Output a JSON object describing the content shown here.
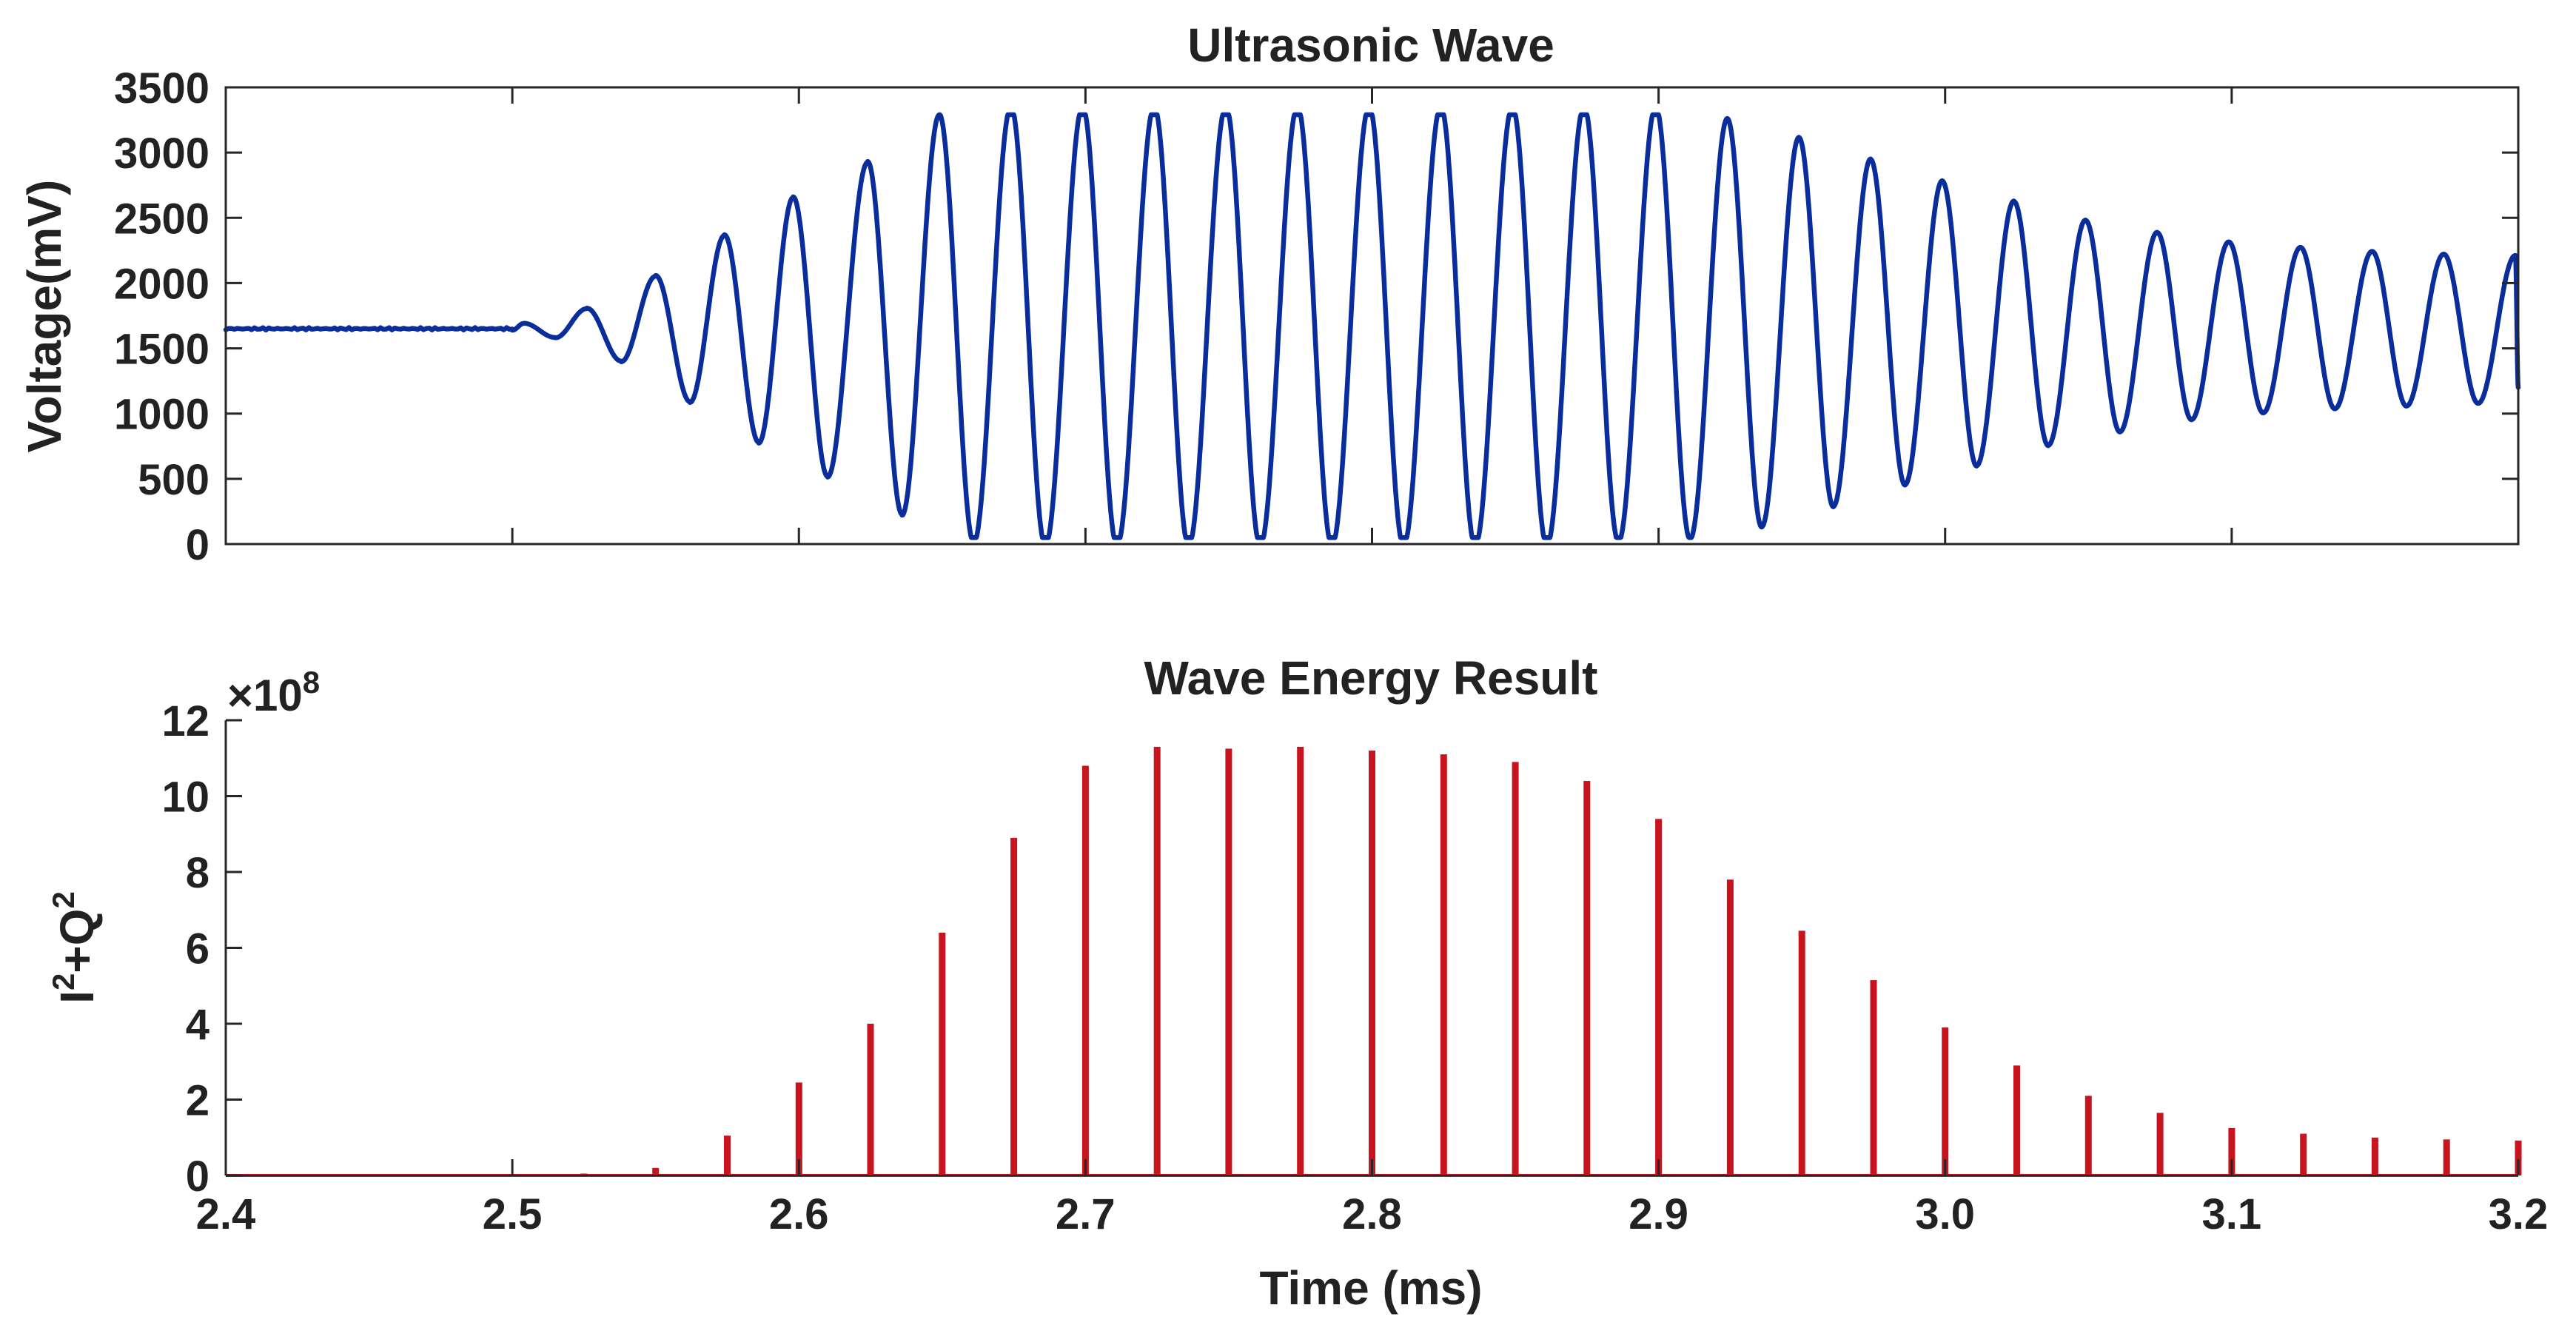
{
  "chart_data": [
    {
      "type": "line",
      "title": "Ultrasonic Wave",
      "xlabel": "",
      "ylabel": "Voltage(mV)",
      "xlim": [
        2.4,
        3.2
      ],
      "ylim": [
        0,
        3500
      ],
      "yticks": [
        0,
        500,
        1000,
        1500,
        2000,
        2500,
        3000,
        3500
      ],
      "yticklabels": [
        "0",
        "500",
        "1000",
        "1500",
        "2000",
        "2500",
        "3000",
        "3500"
      ],
      "xticks": [
        2.5,
        2.6,
        2.7,
        2.8,
        2.9,
        3.0,
        3.1,
        3.2
      ],
      "series": [
        {
          "name": "Ultrasonic Wave",
          "color": "#0a2d9c",
          "baseline_mV": 1650,
          "clip_max_mV": 3290,
          "clip_min_mV": 50,
          "extrema": [
            [
              2.4,
              1650
            ],
            [
              2.5,
              1640
            ],
            [
              2.504,
              1690
            ],
            [
              2.515,
              1585
            ],
            [
              2.526,
              1800
            ],
            [
              2.538,
              1410
            ],
            [
              2.55,
              2040
            ],
            [
              2.562,
              1110
            ],
            [
              2.574,
              2340
            ],
            [
              2.586,
              810
            ],
            [
              2.598,
              2620
            ],
            [
              2.61,
              560
            ],
            [
              2.624,
              2880
            ],
            [
              2.636,
              280
            ],
            [
              2.649,
              3230
            ],
            [
              2.661,
              70
            ],
            [
              2.674,
              3290
            ],
            [
              2.686,
              50
            ],
            [
              2.699,
              3290
            ],
            [
              2.711,
              50
            ],
            [
              2.724,
              3290
            ],
            [
              2.736,
              50
            ],
            [
              2.749,
              3290
            ],
            [
              2.761,
              50
            ],
            [
              2.774,
              3290
            ],
            [
              2.786,
              50
            ],
            [
              2.799,
              3290
            ],
            [
              2.811,
              50
            ],
            [
              2.824,
              3290
            ],
            [
              2.836,
              50
            ],
            [
              2.849,
              3290
            ],
            [
              2.861,
              50
            ],
            [
              2.874,
              3290
            ],
            [
              2.886,
              80
            ],
            [
              2.899,
              3290
            ],
            [
              2.911,
              100
            ],
            [
              2.924,
              3200
            ],
            [
              2.936,
              190
            ],
            [
              2.949,
              3060
            ],
            [
              2.961,
              340
            ],
            [
              2.974,
              2900
            ],
            [
              2.986,
              500
            ],
            [
              2.999,
              2740
            ],
            [
              3.011,
              640
            ],
            [
              3.024,
              2590
            ],
            [
              3.036,
              790
            ],
            [
              3.049,
              2450
            ],
            [
              3.061,
              890
            ],
            [
              3.074,
              2360
            ],
            [
              3.086,
              980
            ],
            [
              3.099,
              2290
            ],
            [
              3.111,
              1030
            ],
            [
              3.124,
              2250
            ],
            [
              3.136,
              1060
            ],
            [
              3.149,
              2220
            ],
            [
              3.161,
              1080
            ],
            [
              3.174,
              2200
            ],
            [
              3.186,
              1100
            ],
            [
              3.199,
              2190
            ],
            [
              3.2,
              1220
            ]
          ]
        }
      ]
    },
    {
      "type": "bar",
      "title": "Wave Energy Result",
      "xlabel": "Time (ms)",
      "ylabel": "I²+Q²",
      "yscale_label": "×10",
      "yscale_exponent": "8",
      "xlim": [
        2.4,
        3.2
      ],
      "ylim": [
        0,
        12
      ],
      "yticks": [
        0,
        2,
        4,
        6,
        8,
        10,
        12
      ],
      "yticklabels": [
        "0",
        "2",
        "4",
        "6",
        "8",
        "10",
        "12"
      ],
      "xticks": [
        2.4,
        2.5,
        2.6,
        2.7,
        2.8,
        2.9,
        3.0,
        3.1,
        3.2
      ],
      "xticklabels": [
        "2.4",
        "2.5",
        "2.6",
        "2.7",
        "2.8",
        "2.9",
        "3.0",
        "3.1",
        "3.2"
      ],
      "series": [
        {
          "name": "I^2+Q^2 (x10^8)",
          "color": "#c8141e",
          "x": [
            2.525,
            2.55,
            2.575,
            2.6,
            2.625,
            2.65,
            2.675,
            2.7,
            2.725,
            2.75,
            2.775,
            2.8,
            2.825,
            2.85,
            2.875,
            2.9,
            2.925,
            2.95,
            2.975,
            3.0,
            3.025,
            3.05,
            3.075,
            3.1,
            3.125,
            3.15,
            3.175,
            3.2
          ],
          "values": [
            0.05,
            0.2,
            1.05,
            2.45,
            4.0,
            6.4,
            8.9,
            10.8,
            11.3,
            11.25,
            11.3,
            11.2,
            11.1,
            10.9,
            10.4,
            9.4,
            7.8,
            6.45,
            5.15,
            3.9,
            2.9,
            2.1,
            1.65,
            1.25,
            1.1,
            1.0,
            0.95,
            0.92
          ]
        }
      ]
    }
  ]
}
